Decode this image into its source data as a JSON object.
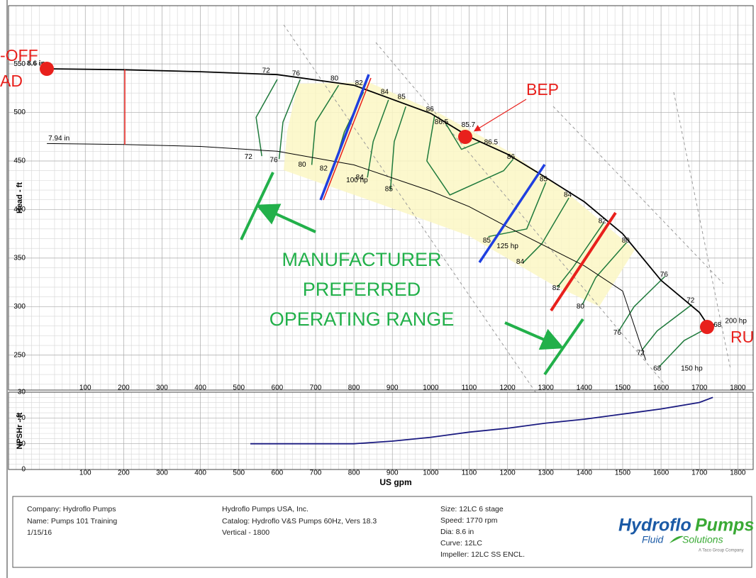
{
  "chart_data": [
    {
      "type": "line",
      "y_label": "Head - ft",
      "xlim": [
        -100,
        1840
      ],
      "ylim": [
        214,
        610
      ],
      "xticks": [
        100,
        200,
        300,
        400,
        500,
        600,
        700,
        800,
        900,
        1000,
        1100,
        1200,
        1300,
        1400,
        1500,
        1600,
        1700,
        1800
      ],
      "yticks": [
        250,
        300,
        350,
        400,
        450,
        500,
        550
      ],
      "grid": true,
      "series": [
        {
          "name": "8.6 in",
          "color": "#000000",
          "x": [
            0,
            200,
            400,
            600,
            800,
            1000,
            1100,
            1200,
            1300,
            1400,
            1500,
            1600,
            1700,
            1725
          ],
          "values": [
            545,
            544,
            542,
            539,
            528,
            499,
            475,
            457,
            433,
            408,
            375,
            327,
            294,
            279
          ]
        },
        {
          "name": "7.94 in",
          "color": "#000000",
          "x": [
            0,
            200,
            400,
            600,
            800,
            1000,
            1100,
            1200,
            1300,
            1400,
            1500,
            1560
          ],
          "values": [
            468,
            467,
            465,
            460,
            446,
            419,
            403,
            382,
            362,
            342,
            316,
            245
          ]
        }
      ],
      "efficiency_contours": [
        {
          "x": [
            600,
            545,
            560
          ],
          "y": [
            534,
            495,
            455
          ]
        },
        {
          "x": [
            660,
            615,
            605
          ],
          "y": [
            534,
            490,
            452
          ]
        },
        {
          "x": [
            760,
            700,
            690
          ],
          "y": [
            528,
            490,
            446
          ]
        },
        {
          "x": [
            825,
            775,
            745
          ],
          "y": [
            521,
            480,
            440
          ]
        },
        {
          "x": [
            890,
            850,
            835
          ],
          "y": [
            513,
            470,
            433
          ]
        },
        {
          "x": [
            935,
            905,
            895
          ],
          "y": [
            506,
            470,
            420
          ]
        },
        {
          "x": [
            1010,
            990,
            1050,
            1190,
            1215
          ],
          "y": [
            497,
            450,
            415,
            440,
            452
          ]
        },
        {
          "x": [
            1040,
            1080,
            1130
          ],
          "y": [
            488,
            462,
            470
          ]
        },
        {
          "x": [
            1300,
            1250,
            1150
          ],
          "y": [
            428,
            380,
            372
          ]
        },
        {
          "x": [
            1360,
            1290,
            1240
          ],
          "y": [
            412,
            365,
            345
          ]
        },
        {
          "x": [
            1450,
            1370,
            1330
          ],
          "y": [
            386,
            340,
            320
          ]
        },
        {
          "x": [
            1510,
            1430,
            1395
          ],
          "y": [
            366,
            330,
            302
          ]
        },
        {
          "x": [
            1610,
            1530,
            1490
          ],
          "y": [
            331,
            300,
            275
          ]
        },
        {
          "x": [
            1680,
            1590,
            1550
          ],
          "y": [
            302,
            275,
            255
          ]
        },
        {
          "x": [
            1740,
            1660,
            1595
          ],
          "y": [
            282,
            265,
            238
          ]
        }
      ],
      "efficiency_labels": [
        {
          "value": 72,
          "x": 571,
          "y": 543
        },
        {
          "value": 76,
          "x": 649,
          "y": 540
        },
        {
          "value": 80,
          "x": 749,
          "y": 535
        },
        {
          "value": 82,
          "x": 813,
          "y": 530
        },
        {
          "value": 84,
          "x": 880,
          "y": 521
        },
        {
          "value": 85,
          "x": 924,
          "y": 516
        },
        {
          "value": 86,
          "x": 998,
          "y": 503
        },
        {
          "value": 86.5,
          "x": 1028,
          "y": 490
        },
        {
          "value": 85.7,
          "x": 1098,
          "y": 487
        },
        {
          "value": 86.5,
          "x": 1157,
          "y": 469
        },
        {
          "value": 86,
          "x": 1209,
          "y": 454
        },
        {
          "value": 85,
          "x": 1294,
          "y": 431
        },
        {
          "value": 84,
          "x": 1357,
          "y": 415
        },
        {
          "value": 82,
          "x": 1447,
          "y": 388
        },
        {
          "value": 80,
          "x": 1508,
          "y": 368
        },
        {
          "value": 76,
          "x": 1608,
          "y": 333
        },
        {
          "value": 72,
          "x": 1677,
          "y": 306
        },
        {
          "value": 68,
          "x": 1747,
          "y": 281
        },
        {
          "value": 72,
          "x": 525,
          "y": 454
        },
        {
          "value": 76,
          "x": 591,
          "y": 451
        },
        {
          "value": 80,
          "x": 665,
          "y": 446
        },
        {
          "value": 82,
          "x": 721,
          "y": 442
        },
        {
          "value": 84,
          "x": 815,
          "y": 433
        },
        {
          "value": 85,
          "x": 891,
          "y": 421
        },
        {
          "value": 85,
          "x": 1146,
          "y": 368
        },
        {
          "value": 84,
          "x": 1233,
          "y": 346
        },
        {
          "value": 82,
          "x": 1327,
          "y": 319
        },
        {
          "value": 80,
          "x": 1390,
          "y": 300
        },
        {
          "value": 76,
          "x": 1486,
          "y": 273
        },
        {
          "value": 72,
          "x": 1547,
          "y": 252
        },
        {
          "value": 68,
          "x": 1590,
          "y": 236
        }
      ],
      "power_labels": [
        {
          "label": "100 hp",
          "x": 808,
          "y": 430
        },
        {
          "label": "125 hp",
          "x": 1200,
          "y": 362
        },
        {
          "label": "200 hp",
          "x": 1795,
          "y": 285
        },
        {
          "label": "150 hp",
          "x": 1680,
          "y": 236
        }
      ]
    },
    {
      "type": "line",
      "y_label": "NPSHr - ft",
      "x_label": "US gpm",
      "xlim": [
        -100,
        1840
      ],
      "ylim": [
        0,
        30
      ],
      "xticks": [
        100,
        200,
        300,
        400,
        500,
        600,
        700,
        800,
        900,
        1000,
        1100,
        1200,
        1300,
        1400,
        1500,
        1600,
        1700,
        1800
      ],
      "yticks": [
        0,
        10,
        20,
        30
      ],
      "grid": true,
      "series": [
        {
          "color": "#1a1a80",
          "x": [
            530,
            800,
            900,
            1000,
            1100,
            1200,
            1300,
            1400,
            1500,
            1600,
            1700,
            1735
          ],
          "values": [
            10,
            10,
            11,
            12.5,
            14.5,
            16,
            18,
            19.5,
            21.5,
            23.5,
            26,
            28
          ]
        }
      ]
    }
  ],
  "annotations": {
    "shutoff_top": "-OFF",
    "shutoff_bottom": "AD",
    "runout": "RU",
    "bep": "BEP",
    "range": [
      "MANUFACTURER",
      "PREFERRED",
      "OPERATING RANGE"
    ]
  },
  "footer": {
    "left": [
      "Company: Hydroflo Pumps",
      "Name: Pumps 101 Training",
      "1/15/16"
    ],
    "middle": [
      "Hydroflo Pumps USA, Inc.",
      "Catalog: Hydroflo V&S Pumps 60Hz, Vers 18.3",
      "Vertical - 1800"
    ],
    "right": [
      "Size: 12LC 6 stage",
      "Speed: 1770 rpm",
      "Dia: 8.6 in",
      "Curve: 12LC",
      "Impeller: 12LC  SS ENCL."
    ],
    "logo": {
      "brand1": "Hydroflo",
      "brand2": "Pumps",
      "fluid": "Fluid",
      "solutions": "Solutions",
      "tagline": "A Taco Group Company"
    }
  }
}
